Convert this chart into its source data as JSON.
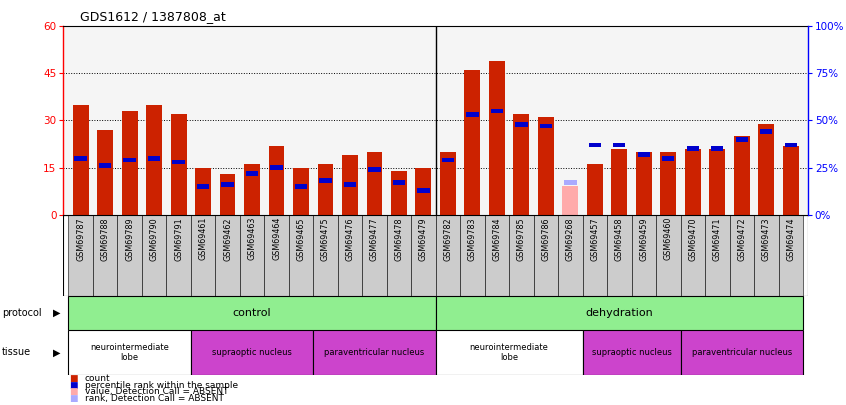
{
  "title": "GDS1612 / 1387808_at",
  "samples": [
    "GSM69787",
    "GSM69788",
    "GSM69789",
    "GSM69790",
    "GSM69791",
    "GSM69461",
    "GSM69462",
    "GSM69463",
    "GSM69464",
    "GSM69465",
    "GSM69475",
    "GSM69476",
    "GSM69477",
    "GSM69478",
    "GSM69479",
    "GSM69782",
    "GSM69783",
    "GSM69784",
    "GSM69785",
    "GSM69786",
    "GSM69268",
    "GSM69457",
    "GSM69458",
    "GSM69459",
    "GSM69460",
    "GSM69470",
    "GSM69471",
    "GSM69472",
    "GSM69473",
    "GSM69474"
  ],
  "count_values": [
    35,
    27,
    33,
    35,
    32,
    15,
    13,
    16,
    22,
    15,
    16,
    19,
    20,
    14,
    15,
    20,
    46,
    49,
    32,
    31,
    9,
    16,
    21,
    20,
    20,
    21,
    21,
    25,
    29,
    22
  ],
  "rank_values": [
    30,
    26,
    29,
    30,
    28,
    15,
    16,
    22,
    25,
    15,
    18,
    16,
    24,
    17,
    13,
    29,
    53,
    55,
    48,
    47,
    17,
    37,
    37,
    32,
    30,
    35,
    35,
    40,
    44,
    37
  ],
  "absent_bar": [
    false,
    false,
    false,
    false,
    false,
    false,
    false,
    false,
    false,
    false,
    false,
    false,
    false,
    false,
    false,
    false,
    false,
    false,
    false,
    false,
    true,
    false,
    false,
    false,
    false,
    false,
    false,
    false,
    false,
    false
  ],
  "absent_rank": [
    false,
    false,
    false,
    false,
    false,
    false,
    false,
    false,
    false,
    false,
    false,
    false,
    false,
    false,
    false,
    false,
    false,
    false,
    false,
    false,
    true,
    false,
    false,
    false,
    false,
    false,
    false,
    false,
    false,
    false
  ],
  "bar_color": "#cc2200",
  "rank_color": "#0000cc",
  "absent_bar_color": "#ffaaaa",
  "absent_rank_color": "#aaaaff",
  "ylim_left": [
    0,
    60
  ],
  "yticks_left": [
    0,
    15,
    30,
    45,
    60
  ],
  "yticks_right": [
    0,
    25,
    50,
    75,
    100
  ],
  "ytick_labels_right": [
    "0%",
    "25%",
    "50%",
    "75%",
    "100%"
  ],
  "grid_values": [
    15,
    30,
    45
  ],
  "background_color": "#ffffff",
  "plot_bg_color": "#f5f5f5",
  "xtick_bg_color": "#cccccc",
  "protocol_color": "#90ee90",
  "tissue_colors": {
    "neurointermediate": "#ffffff",
    "supraoptic": "#cc44cc",
    "paraventricular": "#cc44cc"
  },
  "tissue_defs": [
    {
      "label": "neurointermediate\nlobe",
      "start": 0,
      "end": 4,
      "color": "#ffffff"
    },
    {
      "label": "supraoptic nucleus",
      "start": 5,
      "end": 9,
      "color": "#cc44cc"
    },
    {
      "label": "paraventricular nucleus",
      "start": 10,
      "end": 14,
      "color": "#cc44cc"
    },
    {
      "label": "neurointermediate\nlobe",
      "start": 15,
      "end": 20,
      "color": "#ffffff"
    },
    {
      "label": "supraoptic nucleus",
      "start": 21,
      "end": 24,
      "color": "#cc44cc"
    },
    {
      "label": "paraventricular nucleus",
      "start": 25,
      "end": 29,
      "color": "#cc44cc"
    }
  ]
}
